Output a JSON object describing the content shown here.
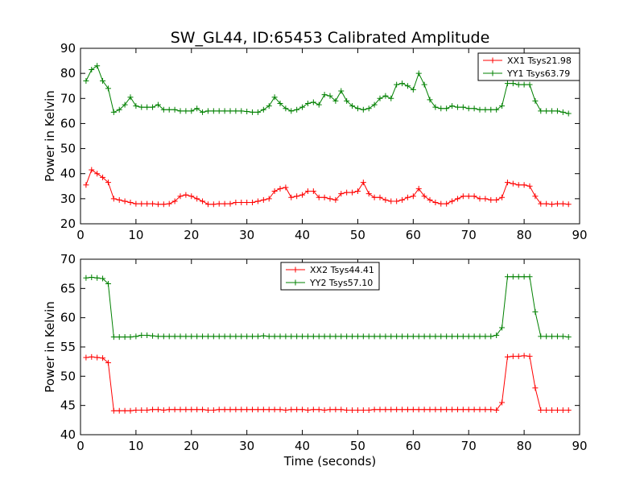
{
  "chart_data": [
    {
      "type": "line",
      "title": "SW_GL44, ID:65453 Calibrated Amplitude",
      "xlabel": "",
      "ylabel": "Power in Kelvin",
      "xlim": [
        0,
        90
      ],
      "ylim": [
        20,
        90
      ],
      "xticks": [
        "0",
        "10",
        "20",
        "30",
        "40",
        "50",
        "60",
        "70",
        "80",
        "90"
      ],
      "yticks": [
        "20",
        "30",
        "40",
        "50",
        "60",
        "70",
        "80",
        "90"
      ],
      "grid": false,
      "legend": "top-right",
      "x": [
        1,
        2,
        3,
        4,
        5,
        6,
        7,
        8,
        9,
        10,
        11,
        12,
        13,
        14,
        15,
        16,
        17,
        18,
        19,
        20,
        21,
        22,
        23,
        24,
        25,
        26,
        27,
        28,
        29,
        30,
        31,
        32,
        33,
        34,
        35,
        36,
        37,
        38,
        39,
        40,
        41,
        42,
        43,
        44,
        45,
        46,
        47,
        48,
        49,
        50,
        51,
        52,
        53,
        54,
        55,
        56,
        57,
        58,
        59,
        60,
        61,
        62,
        63,
        64,
        65,
        66,
        67,
        68,
        69,
        70,
        71,
        72,
        73,
        74,
        75,
        76,
        77,
        78,
        79,
        80,
        81,
        82,
        83,
        84,
        85,
        86,
        87,
        88
      ],
      "series": [
        {
          "name": "XX1 Tsys21.98",
          "color": "#ff0000",
          "values": [
            35.5,
            41.5,
            40,
            38.5,
            36.5,
            30,
            29.5,
            29,
            28.5,
            28,
            28,
            28,
            28,
            27.8,
            27.8,
            28,
            29,
            31,
            31.5,
            31,
            30,
            29,
            27.8,
            27.8,
            28,
            28,
            28,
            28.5,
            28.5,
            28.5,
            28.5,
            29,
            29.5,
            30,
            33,
            34,
            34.5,
            30.5,
            31,
            31.5,
            33,
            33,
            30.5,
            30.5,
            30,
            29.5,
            32,
            32.5,
            32.5,
            33,
            36.5,
            32,
            30.5,
            30.5,
            29.5,
            29,
            29,
            29.5,
            30.5,
            31,
            34,
            31,
            29.5,
            28.5,
            28,
            28,
            29,
            30,
            31,
            31,
            31,
            30,
            30,
            29.5,
            29.5,
            30.5,
            36.5,
            36,
            35.5,
            35.5,
            35,
            31,
            28,
            28,
            27.8,
            28,
            28,
            27.8
          ]
        },
        {
          "name": "YY1 Tsys63.79",
          "color": "#008000",
          "values": [
            77,
            81.5,
            83,
            77,
            74,
            64.5,
            65.5,
            67.5,
            70.5,
            67,
            66.5,
            66.5,
            66.5,
            67.5,
            65.5,
            65.5,
            65.5,
            65,
            65,
            65,
            66,
            64.5,
            65,
            65,
            65,
            65,
            65,
            65,
            65,
            64.8,
            64.5,
            64.5,
            65.5,
            67,
            70.5,
            68,
            66,
            65,
            65.5,
            66.5,
            68,
            68.5,
            67.5,
            71.5,
            71,
            69,
            73,
            69,
            67,
            66,
            65.5,
            66,
            67.5,
            70,
            71,
            70,
            75.5,
            76,
            75,
            73.5,
            80,
            75.5,
            69.5,
            66.5,
            66,
            66,
            67,
            66.5,
            66.5,
            66,
            66,
            65.5,
            65.5,
            65.5,
            65.5,
            67,
            76,
            76,
            75.5,
            75.5,
            75.5,
            69,
            65,
            65,
            65,
            65,
            64.5,
            64
          ]
        }
      ]
    },
    {
      "type": "line",
      "title": "",
      "xlabel": "Time (seconds)",
      "ylabel": "Power in Kelvin",
      "xlim": [
        0,
        90
      ],
      "ylim": [
        40,
        70
      ],
      "xticks": [
        "0",
        "10",
        "20",
        "30",
        "40",
        "50",
        "60",
        "70",
        "80",
        "90"
      ],
      "yticks": [
        "40",
        "45",
        "50",
        "55",
        "60",
        "65",
        "70"
      ],
      "grid": false,
      "legend": "top-center",
      "x": [
        1,
        2,
        3,
        4,
        5,
        6,
        7,
        8,
        9,
        10,
        11,
        12,
        13,
        14,
        15,
        16,
        17,
        18,
        19,
        20,
        21,
        22,
        23,
        24,
        25,
        26,
        27,
        28,
        29,
        30,
        31,
        32,
        33,
        34,
        35,
        36,
        37,
        38,
        39,
        40,
        41,
        42,
        43,
        44,
        45,
        46,
        47,
        48,
        49,
        50,
        51,
        52,
        53,
        54,
        55,
        56,
        57,
        58,
        59,
        60,
        61,
        62,
        63,
        64,
        65,
        66,
        67,
        68,
        69,
        70,
        71,
        72,
        73,
        74,
        75,
        76,
        77,
        78,
        79,
        80,
        81,
        82,
        83,
        84,
        85,
        86,
        87,
        88
      ],
      "series": [
        {
          "name": "XX2 Tsys44.41",
          "color": "#ff0000",
          "values": [
            53.2,
            53.3,
            53.2,
            53.1,
            52.3,
            44.1,
            44.1,
            44.1,
            44.1,
            44.2,
            44.2,
            44.2,
            44.3,
            44.3,
            44.2,
            44.3,
            44.3,
            44.3,
            44.3,
            44.3,
            44.3,
            44.3,
            44.2,
            44.2,
            44.3,
            44.3,
            44.3,
            44.3,
            44.3,
            44.3,
            44.3,
            44.3,
            44.3,
            44.3,
            44.3,
            44.3,
            44.2,
            44.3,
            44.3,
            44.3,
            44.2,
            44.3,
            44.3,
            44.2,
            44.3,
            44.3,
            44.3,
            44.2,
            44.2,
            44.2,
            44.2,
            44.2,
            44.3,
            44.3,
            44.3,
            44.3,
            44.3,
            44.3,
            44.3,
            44.3,
            44.3,
            44.3,
            44.3,
            44.3,
            44.3,
            44.3,
            44.3,
            44.3,
            44.3,
            44.3,
            44.3,
            44.3,
            44.3,
            44.3,
            44.2,
            45.5,
            53.3,
            53.4,
            53.4,
            53.5,
            53.4,
            48,
            44.2,
            44.2,
            44.2,
            44.2,
            44.2,
            44.2
          ]
        },
        {
          "name": "YY2 Tsys57.10",
          "color": "#008000",
          "values": [
            66.8,
            66.9,
            66.8,
            66.7,
            65.8,
            56.7,
            56.7,
            56.7,
            56.7,
            56.8,
            57,
            57,
            56.9,
            56.8,
            56.8,
            56.8,
            56.8,
            56.8,
            56.8,
            56.8,
            56.8,
            56.8,
            56.8,
            56.8,
            56.8,
            56.8,
            56.8,
            56.8,
            56.8,
            56.8,
            56.8,
            56.8,
            56.9,
            56.8,
            56.8,
            56.8,
            56.8,
            56.8,
            56.8,
            56.8,
            56.8,
            56.8,
            56.8,
            56.8,
            56.8,
            56.8,
            56.8,
            56.8,
            56.8,
            56.8,
            56.8,
            56.8,
            56.8,
            56.8,
            56.8,
            56.8,
            56.8,
            56.8,
            56.8,
            56.8,
            56.8,
            56.8,
            56.8,
            56.8,
            56.8,
            56.8,
            56.8,
            56.8,
            56.8,
            56.8,
            56.8,
            56.8,
            56.8,
            56.8,
            57,
            58.3,
            67,
            67,
            67,
            67,
            67,
            61,
            56.8,
            56.8,
            56.8,
            56.8,
            56.8,
            56.7
          ]
        }
      ]
    }
  ]
}
